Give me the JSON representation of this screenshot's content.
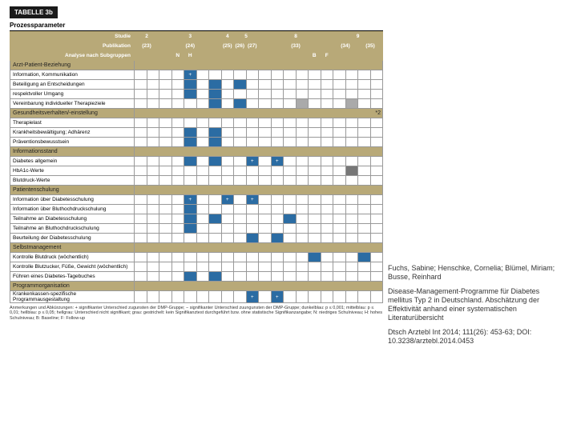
{
  "table_label": "TABELLE 3b",
  "section_title": "Prozessparameter",
  "header_rows": {
    "studie": {
      "label": "Studie",
      "vals": [
        "2",
        "",
        "3",
        "",
        "4",
        "5",
        "",
        "8",
        "",
        "9",
        ""
      ]
    },
    "publikation": {
      "label": "Publikation",
      "vals": [
        "(23)",
        "",
        "(24)",
        "",
        "(25)",
        "(26)",
        "(27)",
        "",
        "(33)",
        "",
        "(34)",
        "(35)"
      ]
    },
    "analyse": {
      "label": "Analyse nach Subgruppen",
      "vals": [
        "",
        "",
        "N",
        "H",
        "",
        "",
        "",
        "",
        "B",
        "F",
        "",
        ""
      ]
    }
  },
  "categories": [
    {
      "name": "Arzt-Patient-Beziehung",
      "rows": [
        {
          "label": "Information, Kommunikation",
          "cells": [
            "",
            "",
            "",
            "",
            "p",
            "",
            "",
            "",
            "",
            "",
            "",
            "",
            "",
            "",
            "",
            "",
            "",
            "",
            "",
            "",
            ""
          ]
        },
        {
          "label": "Beteiligung an Entscheidungen",
          "cells": [
            "",
            "",
            "",
            "",
            "b",
            "",
            "b",
            "",
            "b",
            "",
            "",
            "",
            "",
            "",
            "",
            "",
            "",
            "",
            "",
            "",
            ""
          ]
        },
        {
          "label": "respektvoller Umgang",
          "cells": [
            "",
            "",
            "",
            "",
            "b",
            "",
            "b",
            "",
            "",
            "",
            "",
            "",
            "",
            "",
            "",
            "",
            "",
            "",
            "",
            "",
            ""
          ]
        },
        {
          "label": "Vereinbarung individueller Therapieziele",
          "cells": [
            "",
            "",
            "",
            "",
            "",
            "",
            "b",
            "",
            "b",
            "",
            "",
            "",
            "",
            "g",
            "",
            "",
            "",
            "g",
            "",
            "",
            ""
          ]
        }
      ]
    },
    {
      "name": "Gesundheitsverhalten/-einstellung",
      "rows": [
        {
          "label": "Therapielast",
          "cells": [
            "",
            "",
            "",
            "",
            "",
            "",
            "",
            "",
            "",
            "",
            "",
            "",
            "",
            "",
            "",
            "",
            "",
            "",
            "",
            "",
            ""
          ]
        },
        {
          "label": "Krankheitsbewältigung; Adhärenz",
          "cells": [
            "",
            "",
            "",
            "",
            "b",
            "",
            "b",
            "",
            "",
            "",
            "",
            "",
            "",
            "",
            "",
            "",
            "",
            "",
            "",
            "",
            ""
          ]
        },
        {
          "label": "Präventionsbewusstsein",
          "cells": [
            "",
            "",
            "",
            "",
            "b",
            "",
            "b",
            "",
            "",
            "",
            "",
            "",
            "",
            "",
            "",
            "",
            "",
            "",
            "",
            "",
            ""
          ]
        }
      ]
    },
    {
      "name": "Informationsstand",
      "rows": [
        {
          "label": "Diabetes allgemein",
          "cells": [
            "",
            "",
            "",
            "",
            "b",
            "",
            "b",
            "",
            "",
            "p",
            "",
            "p",
            "",
            "",
            "",
            "",
            "",
            "",
            "",
            "",
            ""
          ]
        },
        {
          "label": "HbA1c-Werte",
          "cells": [
            "",
            "",
            "",
            "",
            "",
            "",
            "",
            "",
            "",
            "",
            "",
            "",
            "",
            "",
            "",
            "",
            "",
            "d",
            "",
            "",
            ""
          ]
        },
        {
          "label": "Blutdruck-Werte",
          "cells": [
            "",
            "",
            "",
            "",
            "",
            "",
            "",
            "",
            "",
            "",
            "",
            "",
            "",
            "",
            "",
            "",
            "",
            "",
            "",
            "",
            ""
          ]
        }
      ]
    },
    {
      "name": "Patientenschulung",
      "rows": [
        {
          "label": "Information über Diabetesschulung",
          "cells": [
            "",
            "",
            "",
            "",
            "p",
            "",
            "",
            "p",
            "",
            "p",
            "",
            "",
            "",
            "",
            "",
            "",
            "",
            "",
            "",
            "",
            ""
          ]
        },
        {
          "label": "Information über Bluthochdruckschulung",
          "cells": [
            "",
            "",
            "",
            "",
            "b",
            "",
            "",
            "",
            "",
            "",
            "",
            "",
            "",
            "",
            "",
            "",
            "",
            "",
            "",
            "",
            ""
          ]
        },
        {
          "label": "Teilnahme an Diabetesschulung",
          "cells": [
            "",
            "",
            "",
            "",
            "b",
            "",
            "b",
            "",
            "",
            "",
            "",
            "",
            "b",
            "",
            "",
            "",
            "",
            "",
            "",
            "",
            ""
          ]
        },
        {
          "label": "Teilnahme an Bluthochdruckschulung",
          "cells": [
            "",
            "",
            "",
            "",
            "b",
            "",
            "",
            "",
            "",
            "",
            "",
            "",
            "",
            "",
            "",
            "",
            "",
            "",
            "",
            "",
            ""
          ]
        },
        {
          "label": "Beurteilung der Diabetesschulung",
          "cells": [
            "",
            "",
            "",
            "",
            "",
            "",
            "",
            "",
            "",
            "b",
            "",
            "b",
            "",
            "",
            "",
            "",
            "",
            "",
            "",
            "",
            ""
          ]
        }
      ]
    },
    {
      "name": "Selbstmanagement",
      "rows": [
        {
          "label": "Kontrolle Blutdruck (wöchentlich)",
          "cells": [
            "",
            "",
            "",
            "",
            "",
            "",
            "",
            "",
            "",
            "",
            "",
            "",
            "",
            "",
            "b",
            "",
            "",
            "",
            "b",
            "",
            ""
          ]
        },
        {
          "label": "Kontrolle Blutzucker, Füße, Gewicht (wöchentlich)",
          "cells": [
            "",
            "",
            "",
            "",
            "",
            "",
            "",
            "",
            "",
            "",
            "",
            "",
            "",
            "",
            "",
            "",
            "",
            "",
            "",
            "",
            ""
          ]
        },
        {
          "label": "Führen eines Diabetes-Tagebuches",
          "cells": [
            "",
            "",
            "",
            "",
            "b",
            "",
            "b",
            "",
            "",
            "",
            "",
            "",
            "",
            "",
            "",
            "",
            "",
            "",
            "",
            "",
            ""
          ]
        }
      ]
    },
    {
      "name": "Programmorganisation",
      "rows": [
        {
          "label": "Krankenkassen-spezifische Programmausgestaltung",
          "cells": [
            "",
            "",
            "",
            "",
            "",
            "",
            "",
            "",
            "",
            "p",
            "",
            "p",
            "",
            "",
            "",
            "",
            "",
            "",
            "",
            "",
            ""
          ]
        }
      ]
    }
  ],
  "citation": {
    "authors": "Fuchs, Sabine; Henschke, Cornelia; Blümel, Miriam; Busse, Reinhard",
    "title": "Disease-Management-Programme für Diabetes mellitus Typ 2 in Deutschland. Abschätzung der Effektivität anhand einer systematischen Literaturübersicht",
    "ref": "Dtsch Arztebl Int 2014; 111(26): 453-63; DOI: 10.3238/arztebl.2014.0453"
  },
  "footnote": "Anmerkungen und Abkürzungen: + signifikanter Unterschied zugunsten der DMP-Gruppe; − signifikanter Unterschied zuungunsten der DMP-Gruppe; dunkelblau: p ≤ 0,001; mittelblau: p ≤ 0,01; hellblau: p ≤ 0,05; hellgrau: Unterschied nicht signifikant; grau: gestrichelt: kein Signifikanztest durchgeführt bzw. ohne statistische Signifikanzangabe; N: niedriges Schulniveau; H: hohes Schulniveau; B: Baseline; F: Follow-up",
  "extra_right": "*2",
  "palette": {
    "beige": "#b8a978",
    "blue": "#2b6ca3",
    "lblue": "#9bb8d4",
    "gray": "#aaa",
    "dgray": "#777"
  }
}
